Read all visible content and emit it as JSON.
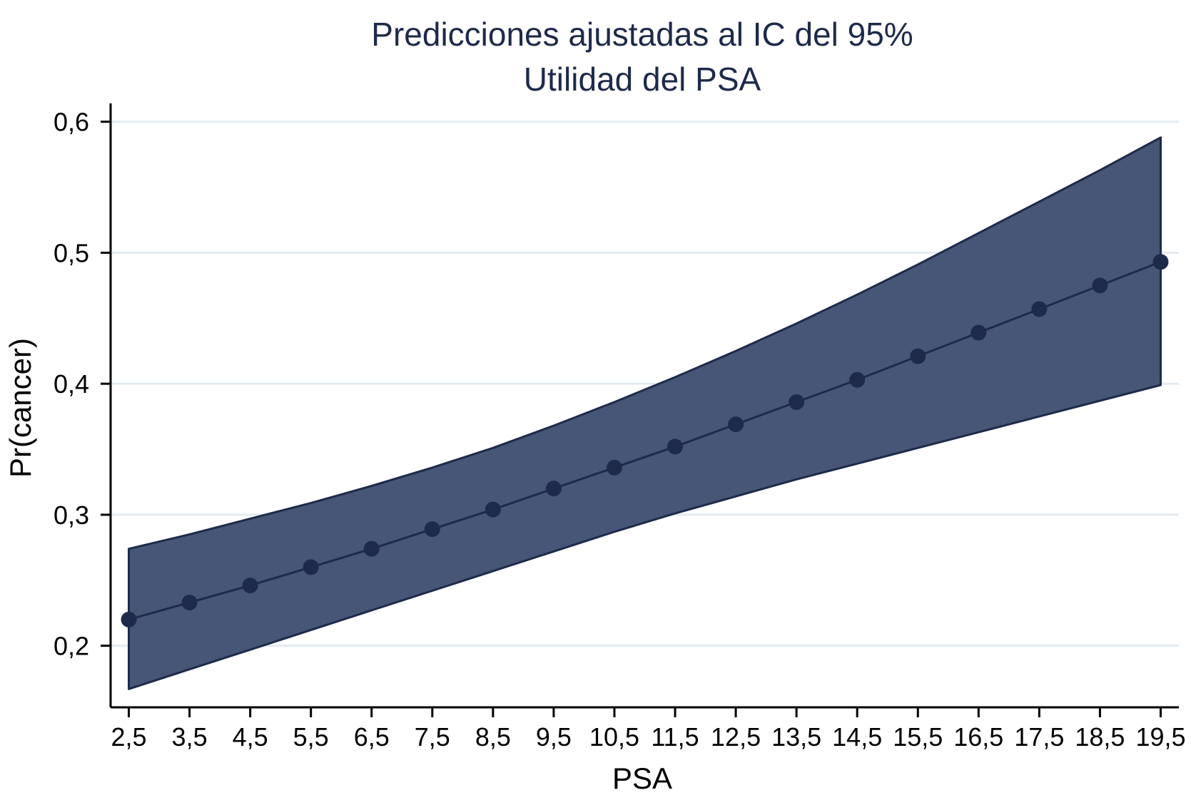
{
  "chart_data": {
    "type": "line",
    "title": "Predicciones ajustadas al IC del 95%",
    "subtitle": "Utilidad del PSA",
    "xlabel": "PSA",
    "ylabel": "Pr(cancer)",
    "x": [
      2.5,
      3.5,
      4.5,
      5.5,
      6.5,
      7.5,
      8.5,
      9.5,
      10.5,
      11.5,
      12.5,
      13.5,
      14.5,
      15.5,
      16.5,
      17.5,
      18.5,
      19.5
    ],
    "x_tick_labels": [
      "2,5",
      "3,5",
      "4,5",
      "5,5",
      "6,5",
      "7,5",
      "8,5",
      "9,5",
      "10,5",
      "11,5",
      "12,5",
      "13,5",
      "14,5",
      "15,5",
      "16,5",
      "17,5",
      "18,5",
      "19,5"
    ],
    "y_ticks": [
      0.2,
      0.3,
      0.4,
      0.5,
      0.6
    ],
    "y_tick_labels": [
      "0,2",
      "0,3",
      "0,4",
      "0,5",
      "0,6"
    ],
    "ylim": [
      0.153,
      0.614
    ],
    "xlim": [
      2.2,
      19.8
    ],
    "grid": true,
    "series": [
      {
        "values": [
          0.22,
          0.233,
          0.246,
          0.26,
          0.274,
          0.289,
          0.304,
          0.32,
          0.336,
          0.352,
          0.369,
          0.386,
          0.403,
          0.421,
          0.439,
          0.457,
          0.475,
          0.493
        ],
        "ci_upper": [
          0.274,
          0.285,
          0.297,
          0.309,
          0.322,
          0.336,
          0.351,
          0.368,
          0.386,
          0.405,
          0.425,
          0.446,
          0.468,
          0.491,
          0.515,
          0.539,
          0.563,
          0.588
        ],
        "ci_lower": [
          0.167,
          0.182,
          0.197,
          0.212,
          0.227,
          0.242,
          0.257,
          0.272,
          0.287,
          0.301,
          0.314,
          0.327,
          0.339,
          0.351,
          0.363,
          0.375,
          0.387,
          0.399
        ]
      }
    ],
    "colors": {
      "band_fill": "#475676",
      "band_edge": "#1e2a4a",
      "line": "#1e2a4a",
      "marker": "#1e2a4a",
      "grid": "#e4ebf0",
      "axis": "#000000",
      "title": "#1e2a4a"
    }
  }
}
